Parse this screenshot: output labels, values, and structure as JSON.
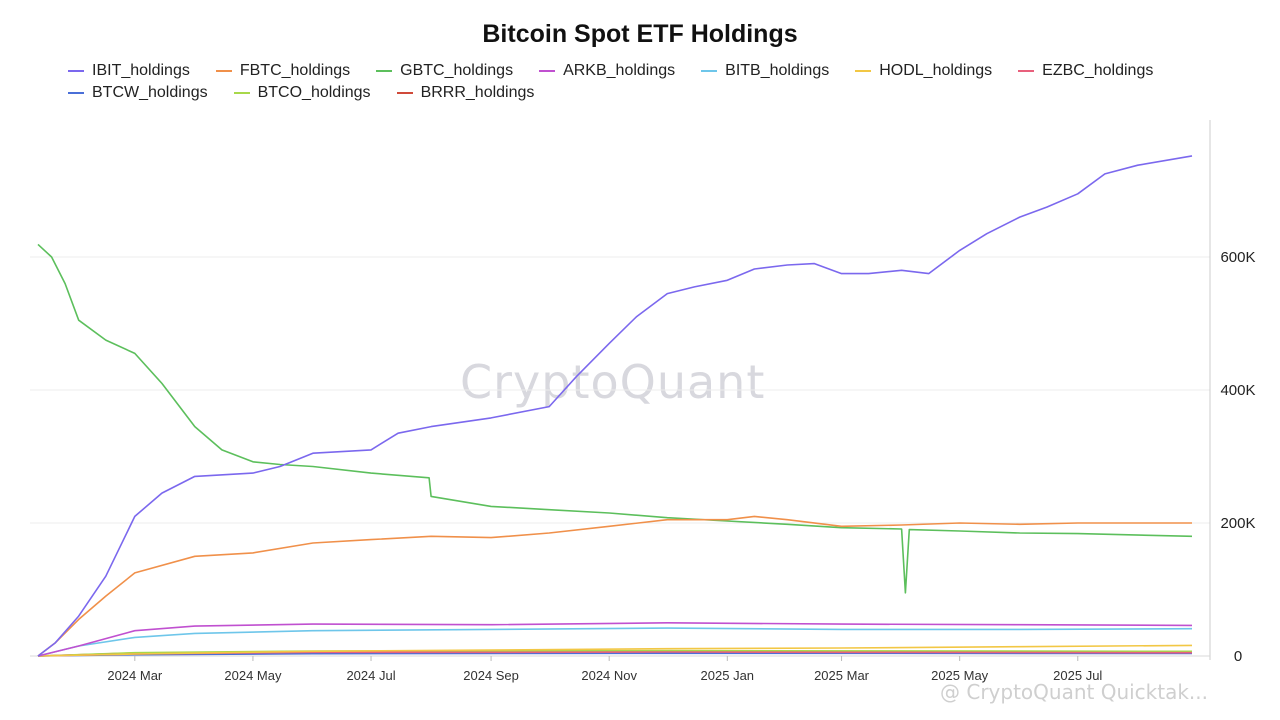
{
  "chart_data": {
    "type": "line",
    "title": "Bitcoin Spot ETF Holdings",
    "xlabel": "",
    "ylabel": "",
    "x_range": [
      "2024-01-11",
      "2025-08-29"
    ],
    "ylim": [
      0,
      800000
    ],
    "y_ticks": [
      {
        "value": 0,
        "label": "0"
      },
      {
        "value": 200000,
        "label": "200K"
      },
      {
        "value": 400000,
        "label": "400K"
      },
      {
        "value": 600000,
        "label": "600K"
      }
    ],
    "x_ticks": [
      {
        "date": "2024-03-01",
        "label": "2024 Mar"
      },
      {
        "date": "2024-05-01",
        "label": "2024 May"
      },
      {
        "date": "2024-07-01",
        "label": "2024 Jul"
      },
      {
        "date": "2024-09-01",
        "label": "2024 Sep"
      },
      {
        "date": "2024-11-01",
        "label": "2024 Nov"
      },
      {
        "date": "2025-01-01",
        "label": "2025 Jan"
      },
      {
        "date": "2025-03-01",
        "label": "2025 Mar"
      },
      {
        "date": "2025-05-01",
        "label": "2025 May"
      },
      {
        "date": "2025-07-01",
        "label": "2025 Jul"
      }
    ],
    "grid": "horizontal",
    "legend_position": "top",
    "series": [
      {
        "name": "IBIT_holdings",
        "color": "#7b68ee",
        "points": [
          [
            "2024-01-11",
            0
          ],
          [
            "2024-01-20",
            20000
          ],
          [
            "2024-02-01",
            60000
          ],
          [
            "2024-02-15",
            120000
          ],
          [
            "2024-03-01",
            210000
          ],
          [
            "2024-03-15",
            245000
          ],
          [
            "2024-04-01",
            270000
          ],
          [
            "2024-05-01",
            275000
          ],
          [
            "2024-05-15",
            285000
          ],
          [
            "2024-06-01",
            305000
          ],
          [
            "2024-07-01",
            310000
          ],
          [
            "2024-07-15",
            335000
          ],
          [
            "2024-08-01",
            345000
          ],
          [
            "2024-09-01",
            358000
          ],
          [
            "2024-10-01",
            375000
          ],
          [
            "2024-10-15",
            420000
          ],
          [
            "2024-11-01",
            470000
          ],
          [
            "2024-11-15",
            510000
          ],
          [
            "2024-12-01",
            545000
          ],
          [
            "2024-12-15",
            555000
          ],
          [
            "2025-01-01",
            565000
          ],
          [
            "2025-01-15",
            582000
          ],
          [
            "2025-02-01",
            588000
          ],
          [
            "2025-02-15",
            590000
          ],
          [
            "2025-03-01",
            575000
          ],
          [
            "2025-03-15",
            575000
          ],
          [
            "2025-04-01",
            580000
          ],
          [
            "2025-04-15",
            575000
          ],
          [
            "2025-05-01",
            610000
          ],
          [
            "2025-05-15",
            635000
          ],
          [
            "2025-06-01",
            660000
          ],
          [
            "2025-06-15",
            675000
          ],
          [
            "2025-07-01",
            695000
          ],
          [
            "2025-07-15",
            725000
          ],
          [
            "2025-08-01",
            738000
          ],
          [
            "2025-08-29",
            752000
          ]
        ]
      },
      {
        "name": "FBTC_holdings",
        "color": "#f0904a",
        "points": [
          [
            "2024-01-11",
            0
          ],
          [
            "2024-01-20",
            20000
          ],
          [
            "2024-02-01",
            55000
          ],
          [
            "2024-02-15",
            90000
          ],
          [
            "2024-03-01",
            125000
          ],
          [
            "2024-04-01",
            150000
          ],
          [
            "2024-05-01",
            155000
          ],
          [
            "2024-06-01",
            170000
          ],
          [
            "2024-07-01",
            175000
          ],
          [
            "2024-08-01",
            180000
          ],
          [
            "2024-09-01",
            178000
          ],
          [
            "2024-10-01",
            185000
          ],
          [
            "2024-11-01",
            195000
          ],
          [
            "2024-12-01",
            205000
          ],
          [
            "2025-01-01",
            205000
          ],
          [
            "2025-01-15",
            210000
          ],
          [
            "2025-02-01",
            205000
          ],
          [
            "2025-03-01",
            195000
          ],
          [
            "2025-04-01",
            197000
          ],
          [
            "2025-05-01",
            200000
          ],
          [
            "2025-06-01",
            198000
          ],
          [
            "2025-07-01",
            200000
          ],
          [
            "2025-08-29",
            200000
          ]
        ]
      },
      {
        "name": "GBTC_holdings",
        "color": "#5cbf5c",
        "points": [
          [
            "2024-01-11",
            619000
          ],
          [
            "2024-01-18",
            600000
          ],
          [
            "2024-01-25",
            560000
          ],
          [
            "2024-02-01",
            505000
          ],
          [
            "2024-02-15",
            475000
          ],
          [
            "2024-03-01",
            455000
          ],
          [
            "2024-03-15",
            410000
          ],
          [
            "2024-04-01",
            345000
          ],
          [
            "2024-04-15",
            310000
          ],
          [
            "2024-05-01",
            292000
          ],
          [
            "2024-05-15",
            288000
          ],
          [
            "2024-06-01",
            285000
          ],
          [
            "2024-07-01",
            275000
          ],
          [
            "2024-07-31",
            268000
          ],
          [
            "2024-08-01",
            240000
          ],
          [
            "2024-09-01",
            225000
          ],
          [
            "2024-10-01",
            220000
          ],
          [
            "2024-11-01",
            215000
          ],
          [
            "2024-12-01",
            208000
          ],
          [
            "2025-01-01",
            203000
          ],
          [
            "2025-02-01",
            198000
          ],
          [
            "2025-03-01",
            193000
          ],
          [
            "2025-04-01",
            191000
          ],
          [
            "2025-04-03",
            95000
          ],
          [
            "2025-04-05",
            190000
          ],
          [
            "2025-05-01",
            188000
          ],
          [
            "2025-06-01",
            185000
          ],
          [
            "2025-07-01",
            184000
          ],
          [
            "2025-08-29",
            180000
          ]
        ]
      },
      {
        "name": "ARKB_holdings",
        "color": "#c050d0",
        "points": [
          [
            "2024-01-11",
            0
          ],
          [
            "2024-02-01",
            15000
          ],
          [
            "2024-03-01",
            38000
          ],
          [
            "2024-04-01",
            45000
          ],
          [
            "2024-06-01",
            48000
          ],
          [
            "2024-09-01",
            47000
          ],
          [
            "2024-12-01",
            50000
          ],
          [
            "2025-03-01",
            48000
          ],
          [
            "2025-06-01",
            47000
          ],
          [
            "2025-08-29",
            46000
          ]
        ]
      },
      {
        "name": "BITB_holdings",
        "color": "#6ec6ea",
        "points": [
          [
            "2024-01-11",
            0
          ],
          [
            "2024-02-01",
            15000
          ],
          [
            "2024-03-01",
            28000
          ],
          [
            "2024-04-01",
            34000
          ],
          [
            "2024-06-01",
            38000
          ],
          [
            "2024-09-01",
            40000
          ],
          [
            "2024-12-01",
            42000
          ],
          [
            "2025-03-01",
            40000
          ],
          [
            "2025-06-01",
            40000
          ],
          [
            "2025-08-29",
            41000
          ]
        ]
      },
      {
        "name": "HODL_holdings",
        "color": "#f2c744",
        "points": [
          [
            "2024-01-11",
            0
          ],
          [
            "2024-03-01",
            3000
          ],
          [
            "2024-06-01",
            7000
          ],
          [
            "2024-09-01",
            9000
          ],
          [
            "2024-12-01",
            11000
          ],
          [
            "2025-03-01",
            12000
          ],
          [
            "2025-06-01",
            14000
          ],
          [
            "2025-08-29",
            16000
          ]
        ]
      },
      {
        "name": "EZBC_holdings",
        "color": "#e8607c",
        "points": [
          [
            "2024-01-11",
            0
          ],
          [
            "2024-03-01",
            3000
          ],
          [
            "2024-06-01",
            5500
          ],
          [
            "2024-09-01",
            5500
          ],
          [
            "2024-12-01",
            6000
          ],
          [
            "2025-03-01",
            5500
          ],
          [
            "2025-08-29",
            5000
          ]
        ]
      },
      {
        "name": "BTCW_holdings",
        "color": "#4a6fd8",
        "points": [
          [
            "2024-01-11",
            0
          ],
          [
            "2024-03-01",
            2000
          ],
          [
            "2024-06-01",
            3500
          ],
          [
            "2024-12-01",
            4000
          ],
          [
            "2025-08-29",
            3800
          ]
        ]
      },
      {
        "name": "BTCO_holdings",
        "color": "#a8d84a",
        "points": [
          [
            "2024-01-11",
            0
          ],
          [
            "2024-03-01",
            5000
          ],
          [
            "2024-06-01",
            7500
          ],
          [
            "2024-12-01",
            8000
          ],
          [
            "2025-08-29",
            7000
          ]
        ]
      },
      {
        "name": "BRRR_holdings",
        "color": "#d04a3a",
        "points": [
          [
            "2024-01-11",
            0
          ],
          [
            "2024-03-01",
            4500
          ],
          [
            "2024-06-01",
            6000
          ],
          [
            "2024-12-01",
            6500
          ],
          [
            "2025-08-29",
            5500
          ]
        ]
      }
    ]
  },
  "watermark": "CryptoQuant",
  "footer_mark": "@ CryptoQuant Quicktak..."
}
